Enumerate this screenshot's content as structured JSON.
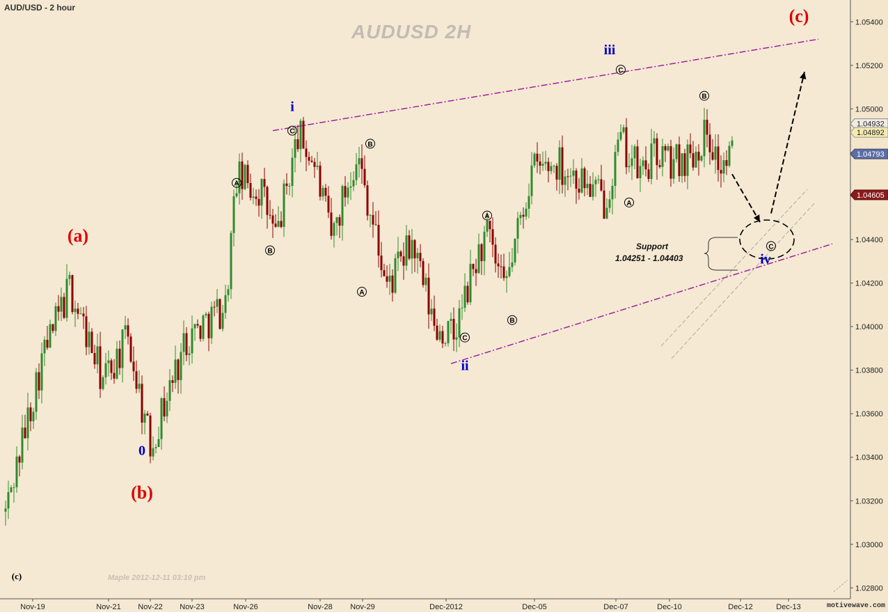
{
  "header": {
    "symbol_period": "AUD/USD - 2 hour",
    "watermark": "AUDUSD  2H"
  },
  "footer": {
    "signature": "Maple  2012-12-11  03:10 pm",
    "brand": "motivewave.com"
  },
  "support": {
    "title": "Support",
    "range": "1.04251 - 1.04403"
  },
  "colors": {
    "background": "#f5e9d3",
    "up_candle": "#2e8b2e",
    "down_candle": "#8b0000",
    "trendline": "#a020a0",
    "red_label": "#e00000",
    "blue_label": "#0000cc",
    "price_tag": "#5a6ea8",
    "price_tag_yellow": "#f4eab0"
  },
  "chart_data": {
    "type": "candlestick",
    "title": "AUDUSD  2H",
    "y_range": [
      1.0275,
      1.055
    ],
    "y_ticks": [
      "1.05400",
      "1.05200",
      "1.05000",
      "1.04800",
      "1.04600",
      "1.04400",
      "1.04200",
      "1.04000",
      "1.03800",
      "1.03600",
      "1.03400",
      "1.03200",
      "1.03000",
      "1.02800"
    ],
    "x_ticks": [
      "Nov-19",
      "Nov-21",
      "Nov-22",
      "Nov-23",
      "Nov-26",
      "Nov-28",
      "Nov-29",
      "Dec-2012",
      "Dec-05",
      "Dec-07",
      "Dec-10",
      "Dec-12",
      "Dec-13"
    ],
    "price_tags": [
      {
        "label": "1.04932",
        "value": 1.04932,
        "style": "light"
      },
      {
        "label": "1.04892",
        "value": 1.04892,
        "style": "yellow"
      },
      {
        "label": "1.04793",
        "value": 1.04793,
        "style": "blue"
      },
      {
        "label": "1.04605",
        "value": 1.04605,
        "style": "red"
      }
    ],
    "swing_points": [
      {
        "bar": 1,
        "price": 1.0315
      },
      {
        "bar": 14,
        "price": 1.0385
      },
      {
        "bar": 24,
        "price": 1.0418
      },
      {
        "bar": 36,
        "price": 1.0375
      },
      {
        "bar": 45,
        "price": 1.0395
      },
      {
        "bar": 53,
        "price": 1.0345
      },
      {
        "bar": 66,
        "price": 1.0395
      },
      {
        "bar": 80,
        "price": 1.041
      },
      {
        "bar": 84,
        "price": 1.0468
      },
      {
        "bar": 93,
        "price": 1.0462
      },
      {
        "bar": 98,
        "price": 1.044
      },
      {
        "bar": 106,
        "price": 1.0488
      },
      {
        "bar": 112,
        "price": 1.0475
      },
      {
        "bar": 118,
        "price": 1.044
      },
      {
        "bar": 127,
        "price": 1.048
      },
      {
        "bar": 130,
        "price": 1.0465
      },
      {
        "bar": 138,
        "price": 1.0418
      },
      {
        "bar": 147,
        "price": 1.0438
      },
      {
        "bar": 155,
        "price": 1.04
      },
      {
        "bar": 162,
        "price": 1.0395
      },
      {
        "bar": 170,
        "price": 1.043
      },
      {
        "bar": 174,
        "price": 1.0442
      },
      {
        "bar": 180,
        "price": 1.0415
      },
      {
        "bar": 190,
        "price": 1.0472
      },
      {
        "bar": 200,
        "price": 1.0475
      },
      {
        "bar": 210,
        "price": 1.0465
      },
      {
        "bar": 216,
        "price": 1.0458
      },
      {
        "bar": 222,
        "price": 1.0485
      },
      {
        "bar": 229,
        "price": 1.047
      },
      {
        "bar": 235,
        "price": 1.048
      },
      {
        "bar": 240,
        "price": 1.0475
      },
      {
        "bar": 248,
        "price": 1.048
      },
      {
        "bar": 253,
        "price": 1.049
      },
      {
        "bar": 258,
        "price": 1.0472
      },
      {
        "bar": 263,
        "price": 1.0481
      }
    ],
    "wave_labels": [
      {
        "text": "(a)",
        "color": "red",
        "size": 26,
        "bar": 27,
        "price": 1.0439
      },
      {
        "text": "(b)",
        "color": "red",
        "size": 26,
        "bar": 50,
        "price": 1.0321
      },
      {
        "text": "0",
        "color": "blue",
        "size": 20,
        "bar": 50,
        "price": 1.0341
      },
      {
        "text": "(c)",
        "color": "red",
        "size": 26,
        "bar": 286,
        "price": 1.054
      },
      {
        "text": "(c)",
        "color": "black",
        "size": 13,
        "bar": 5,
        "price": 1.0284
      },
      {
        "text": "i",
        "color": "blue",
        "size": 20,
        "bar": 104,
        "price": 1.0499
      },
      {
        "text": "ii",
        "color": "blue",
        "size": 20,
        "bar": 166,
        "price": 1.038
      },
      {
        "text": "iii",
        "color": "blue",
        "size": 20,
        "bar": 218,
        "price": 1.0525
      },
      {
        "text": "iv",
        "color": "blue",
        "size": 20,
        "bar": 274,
        "price": 1.0429
      }
    ],
    "circle_labels": [
      {
        "text": "A",
        "bar": 84,
        "price": 1.0466
      },
      {
        "text": "B",
        "bar": 96,
        "price": 1.0435
      },
      {
        "text": "C",
        "bar": 104,
        "price": 1.049
      },
      {
        "text": "A",
        "bar": 129,
        "price": 1.0416
      },
      {
        "text": "B",
        "bar": 132,
        "price": 1.0484
      },
      {
        "text": "C",
        "bar": 166,
        "price": 1.0395
      },
      {
        "text": "A",
        "bar": 174,
        "price": 1.0451
      },
      {
        "text": "B",
        "bar": 183,
        "price": 1.0403
      },
      {
        "text": "C",
        "bar": 222,
        "price": 1.0518
      },
      {
        "text": "A",
        "bar": 225,
        "price": 1.0457
      },
      {
        "text": "B",
        "bar": 252,
        "price": 1.0506
      },
      {
        "text": "C",
        "bar": 276,
        "price": 1.0437
      }
    ],
    "trendlines": [
      {
        "from": {
          "bar": 97,
          "price": 1.049
        },
        "to": {
          "bar": 293,
          "price": 1.0532
        }
      },
      {
        "from": {
          "bar": 161,
          "price": 1.0383
        },
        "to": {
          "bar": 298,
          "price": 1.0438
        }
      }
    ],
    "target_ellipse": {
      "bar": 275,
      "price": 1.044
    },
    "projection_path": [
      {
        "bar": 262,
        "price": 1.047
      },
      {
        "bar": 272,
        "price": 1.0448
      },
      {
        "bar": 276,
        "price": 1.0452
      },
      {
        "bar": 288,
        "price": 1.0517
      }
    ],
    "support_zone": [
      1.04251,
      1.04403
    ]
  }
}
